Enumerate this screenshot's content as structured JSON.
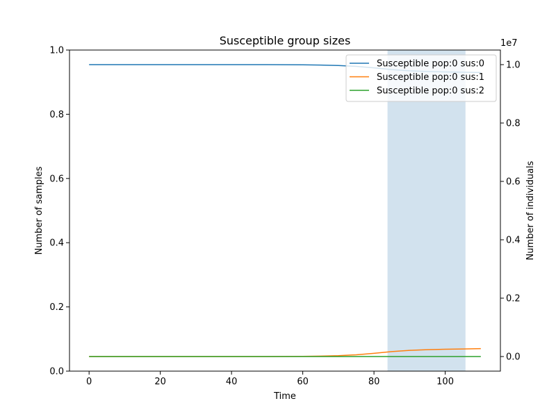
{
  "chart_data": {
    "type": "line",
    "title": "Susceptible group sizes",
    "xlabel": "Time",
    "ylabel_left": "Number of samples",
    "ylabel_right": "Number of individuals",
    "right_axis_multiplier": "1e7",
    "xlim": [
      -5.5,
      115.5
    ],
    "ylim_left": [
      0,
      1
    ],
    "ylim_right": [
      -500000,
      10500000
    ],
    "x_ticks": [
      0,
      20,
      40,
      60,
      80,
      100
    ],
    "x_tick_labels": [
      "0",
      "20",
      "40",
      "60",
      "80",
      "100"
    ],
    "y_left_ticks": [
      0,
      0.2,
      0.4,
      0.6,
      0.8,
      1.0
    ],
    "y_left_tick_labels": [
      "0.0",
      "0.2",
      "0.4",
      "0.6",
      "0.8",
      "1.0"
    ],
    "y_right_ticks": [
      0,
      2000000,
      4000000,
      6000000,
      8000000,
      10000000
    ],
    "y_right_tick_labels": [
      "0.0",
      "0.2",
      "0.4",
      "0.6",
      "0.8",
      "1.0"
    ],
    "shaded_region": {
      "x_start": 83.8,
      "x_end": 105.7,
      "color": "#d2e2ee"
    },
    "legend_position": "top-right",
    "grid": false,
    "series": [
      {
        "name": "Susceptible pop:0 sus:0",
        "color": "#1f77b4",
        "axis": "right",
        "x": [
          0,
          10,
          20,
          30,
          40,
          50,
          55,
          60,
          65,
          70,
          75,
          80,
          85,
          90,
          95,
          100,
          105,
          110
        ],
        "y": [
          10000000,
          10000000,
          10000000,
          10000000,
          10000000,
          9999000,
          9997000,
          9993000,
          9985000,
          9970000,
          9940000,
          9890000,
          9830000,
          9790000,
          9765000,
          9750000,
          9740000,
          9730000
        ]
      },
      {
        "name": "Susceptible pop:0 sus:1",
        "color": "#ff7f0e",
        "axis": "right",
        "x": [
          0,
          10,
          20,
          30,
          40,
          50,
          55,
          60,
          65,
          70,
          75,
          80,
          85,
          90,
          95,
          100,
          105,
          110
        ],
        "y": [
          0,
          0,
          0,
          0,
          0,
          1000,
          3000,
          7000,
          15000,
          30000,
          60000,
          110000,
          170000,
          210000,
          235000,
          250000,
          260000,
          270000
        ]
      },
      {
        "name": "Susceptible pop:0 sus:2",
        "color": "#2ca02c",
        "axis": "right",
        "x": [
          0,
          20,
          40,
          60,
          80,
          100,
          110
        ],
        "y": [
          0,
          0,
          0,
          0,
          0,
          0,
          0
        ]
      }
    ]
  }
}
